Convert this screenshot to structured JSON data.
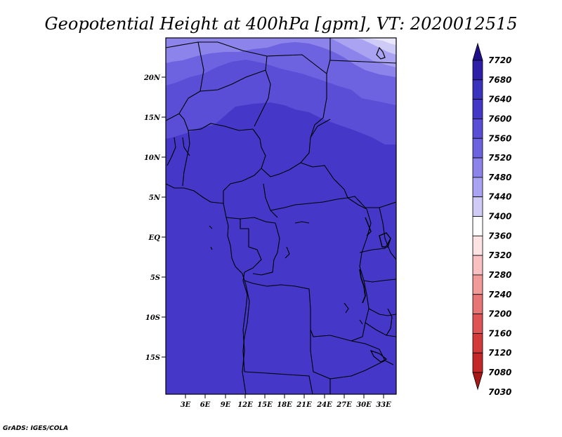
{
  "title": "Geopotential Height at 400hPa [gpm], VT: 2020012515",
  "footer": "GrADS: IGES/COLA",
  "map": {
    "lat_labels": [
      "20N",
      "15N",
      "10N",
      "5N",
      "EQ",
      "5S",
      "10S",
      "15S"
    ],
    "lon_labels": [
      "3E",
      "6E",
      "9E",
      "12E",
      "15E",
      "18E",
      "21E",
      "24E",
      "27E",
      "30E",
      "33E"
    ],
    "field_name": "Geopotential Height",
    "level": "400hPa",
    "units": "gpm"
  },
  "colorbar": {
    "levels": [
      "7720",
      "7680",
      "7640",
      "7600",
      "7560",
      "7520",
      "7480",
      "7440",
      "7400",
      "7360",
      "7320",
      "7280",
      "7240",
      "7200",
      "7160",
      "7120",
      "7080",
      "7030"
    ],
    "colors": [
      "#1f0f8a",
      "#2d1fa8",
      "#3a33bd",
      "#4538c9",
      "#5a4ed6",
      "#6d63e0",
      "#8c84ea",
      "#aaa3f1",
      "#cfcbf7",
      "#ffffff",
      "#fde3e3",
      "#f8c0c0",
      "#f19a9a",
      "#e87575",
      "#df5555",
      "#d33b3b",
      "#c42828",
      "#a81818"
    ]
  }
}
